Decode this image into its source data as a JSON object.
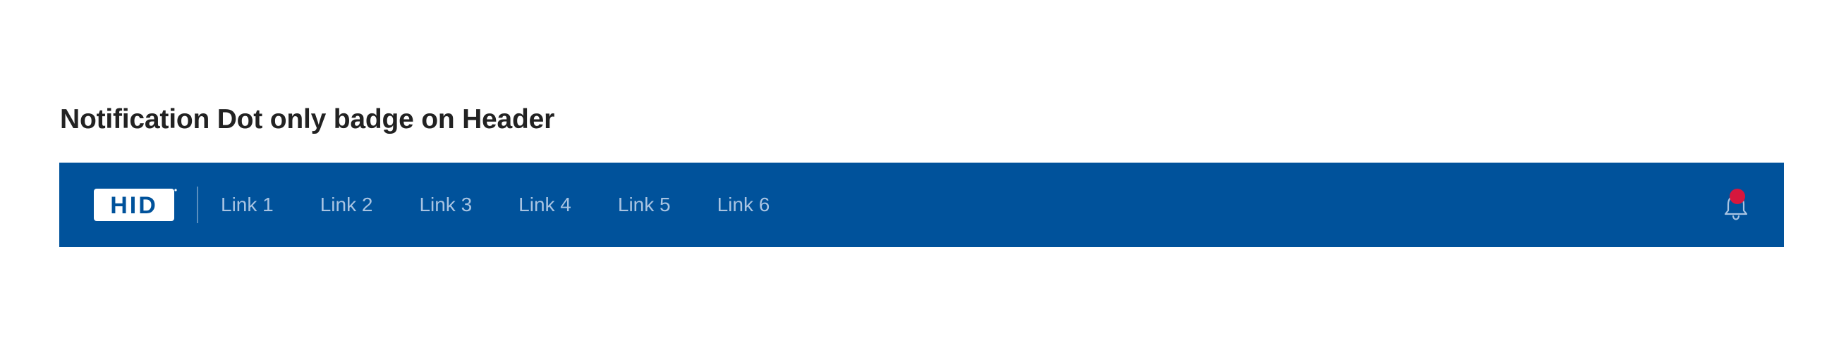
{
  "page": {
    "title": "Notification Dot only badge on Header"
  },
  "header": {
    "logo_text": "HID",
    "logo_icon": "hid-logo",
    "links": [
      "Link 1",
      "Link 2",
      "Link 3",
      "Link 4",
      "Link 5",
      "Link 6"
    ],
    "notification_icon": "bell-icon",
    "notification_badge": "dot"
  },
  "colors": {
    "header_bg": "#00529b",
    "link_text": "#a9c4e2",
    "badge": "#d6173d",
    "title_text": "#222222"
  }
}
